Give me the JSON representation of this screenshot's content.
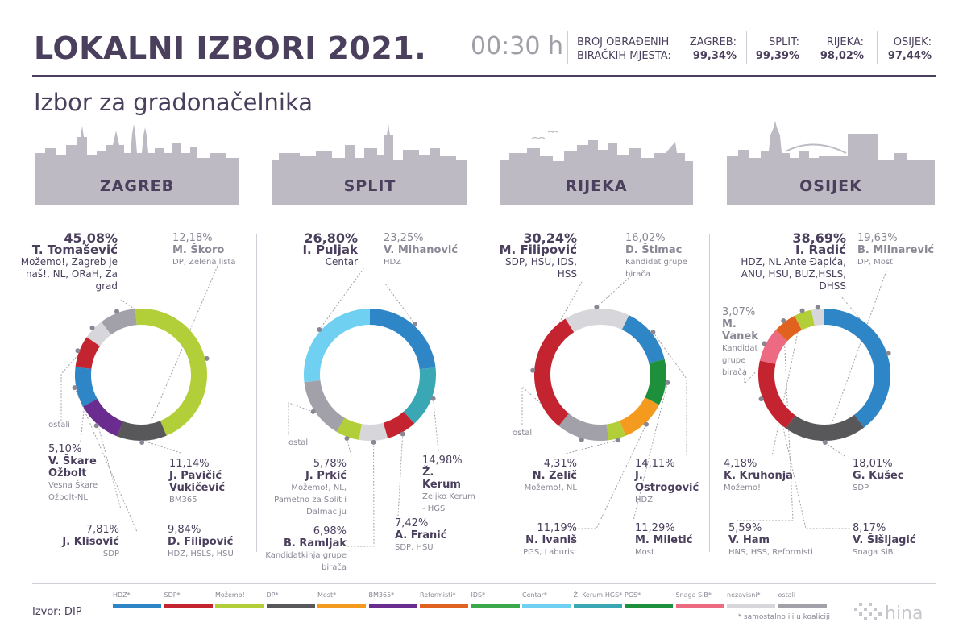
{
  "header": {
    "title": "LOKALNI IZBORI 2021.",
    "time": "00:30 h",
    "count_label_1": "BROJ OBRAĐENIH",
    "count_label_2": "BIRAČKIH MJESTA:",
    "counts": [
      {
        "city": "ZAGREB:",
        "value": "99,34%"
      },
      {
        "city": "SPLIT:",
        "value": "99,39%"
      },
      {
        "city": "RIJEKA:",
        "value": "98,02%"
      },
      {
        "city": "OSIJEK:",
        "value": "97,44%"
      }
    ]
  },
  "subtitle": "Izbor za gradonačelnika",
  "cities": [
    {
      "name": "ZAGREB"
    },
    {
      "name": "SPLIT"
    },
    {
      "name": "RIJEKA"
    },
    {
      "name": "OSIJEK"
    }
  ],
  "colors": {
    "HDZ": "#2f86c6",
    "SDP": "#c42430",
    "Mozemo": "#b2cf3a",
    "DP": "#58585a",
    "Most": "#f39a1f",
    "BM365": "#6a2d8f",
    "Reformisti": "#e0621e",
    "IDS": "#3aa84b",
    "Centar": "#6fd0f2",
    "Kerum": "#3aa7b5",
    "PGS": "#1e8f3a",
    "SnagaSiB": "#ec6a82",
    "nezavisni": "#d7d6da",
    "ostali": "#a2a0a8"
  },
  "chart_data": [
    {
      "type": "pie",
      "title": "ZAGREB",
      "slices": [
        {
          "name": "T. Tomašević",
          "value": 45.08,
          "color": "#b2cf3a"
        },
        {
          "name": "M. Škoro",
          "value": 12.18,
          "color": "#58585a"
        },
        {
          "name": "J. Pavičić Vukičević",
          "value": 11.14,
          "color": "#6a2d8f"
        },
        {
          "name": "D. Filipović",
          "value": 9.84,
          "color": "#2f86c6"
        },
        {
          "name": "J. Klisović",
          "value": 7.81,
          "color": "#c42430"
        },
        {
          "name": "V. Škare Ožbolt",
          "value": 5.1,
          "color": "#d7d6da"
        },
        {
          "name": "ostali",
          "value": 8.85,
          "color": "#a2a0a8"
        }
      ],
      "labels": [
        {
          "pct": "45,08%",
          "name": "T. Tomašević",
          "party": "Možemo!, Zagreb je naš!, NL, ORaH, Za grad"
        },
        {
          "pct": "12,18%",
          "name": "M. Škoro",
          "party": "DP, Zelena lista"
        },
        {
          "pct": "11,14%",
          "name": "J. Pavičić Vukičević",
          "party": "BM365"
        },
        {
          "pct": "9,84%",
          "name": "D. Filipović",
          "party": "HDZ, HSLS, HSU"
        },
        {
          "pct": "7,81%",
          "name": "J. Klisović",
          "party": "SDP"
        },
        {
          "pct": "5,10%",
          "name": "V. Škare Ožbolt",
          "party": "Vesna Škare Ožbolt-NL"
        },
        {
          "pct": "",
          "name": "ostali",
          "party": ""
        }
      ]
    },
    {
      "type": "pie",
      "title": "SPLIT",
      "slices": [
        {
          "name": "V. Mihanović",
          "value": 23.25,
          "color": "#2f86c6"
        },
        {
          "name": "Ž. Kerum",
          "value": 14.98,
          "color": "#3aa7b5"
        },
        {
          "name": "A. Franić",
          "value": 7.42,
          "color": "#c42430"
        },
        {
          "name": "B. Ramljak",
          "value": 6.98,
          "color": "#d7d6da"
        },
        {
          "name": "J. Prkić",
          "value": 5.78,
          "color": "#b2cf3a"
        },
        {
          "name": "ostali",
          "value": 14.79,
          "color": "#a2a0a8"
        },
        {
          "name": "I. Puljak",
          "value": 26.8,
          "color": "#6fd0f2"
        }
      ],
      "labels": [
        {
          "pct": "26,80%",
          "name": "I. Puljak",
          "party": "Centar"
        },
        {
          "pct": "23,25%",
          "name": "V. Mihanović",
          "party": "HDZ"
        },
        {
          "pct": "14,98%",
          "name": "Ž. Kerum",
          "party": "Željko Kerum - HGS"
        },
        {
          "pct": "7,42%",
          "name": "A. Franić",
          "party": "SDP, HSU"
        },
        {
          "pct": "6,98%",
          "name": "B. Ramljak",
          "party": "Kandidatkinja grupe birača"
        },
        {
          "pct": "5,78%",
          "name": "J. Prkić",
          "party": "Možemo!, NL, Pametno za Split i Dalmaciju"
        },
        {
          "pct": "",
          "name": "ostali",
          "party": ""
        }
      ]
    },
    {
      "type": "pie",
      "title": "RIJEKA",
      "slices": [
        {
          "name": "D. Štimac",
          "value": 16.02,
          "color": "#d7d6da"
        },
        {
          "name": "J. Ostrogović",
          "value": 14.11,
          "color": "#2f86c6"
        },
        {
          "name": "M. Miletić",
          "value": 11.29,
          "color": "#1e8f3a"
        },
        {
          "name": "N. Ivaniš",
          "value": 11.19,
          "color": "#f39a1f"
        },
        {
          "name": "N. Zelič",
          "value": 4.31,
          "color": "#b2cf3a"
        },
        {
          "name": "ostali",
          "value": 12.84,
          "color": "#a2a0a8"
        },
        {
          "name": "M. Filipović",
          "value": 30.24,
          "color": "#c42430"
        }
      ],
      "labels": [
        {
          "pct": "30,24%",
          "name": "M. Filipović",
          "party": "SDP, HSU, IDS, HSS"
        },
        {
          "pct": "16,02%",
          "name": "D. Štimac",
          "party": "Kandidat grupe birača"
        },
        {
          "pct": "14,11%",
          "name": "J. Ostrogović",
          "party": "HDZ"
        },
        {
          "pct": "11,29%",
          "name": "M. Miletić",
          "party": "Most"
        },
        {
          "pct": "11,19%",
          "name": "N. Ivaniš",
          "party": "PGS, Laburist"
        },
        {
          "pct": "4,31%",
          "name": "N. Zelič",
          "party": "Možemo!, NL"
        },
        {
          "pct": "",
          "name": "ostali",
          "party": ""
        }
      ]
    },
    {
      "type": "pie",
      "title": "OSIJEK",
      "slices": [
        {
          "name": "I. Radić",
          "value": 38.69,
          "color": "#2f86c6"
        },
        {
          "name": "B. Mlinarević",
          "value": 19.63,
          "color": "#58585a"
        },
        {
          "name": "G. Kušec",
          "value": 18.01,
          "color": "#c42430"
        },
        {
          "name": "V. Šišljagić",
          "value": 8.17,
          "color": "#ec6a82"
        },
        {
          "name": "V. Ham",
          "value": 5.59,
          "color": "#e0621e"
        },
        {
          "name": "K. Kruhonja",
          "value": 4.18,
          "color": "#b2cf3a"
        },
        {
          "name": "M. Vanek",
          "value": 3.07,
          "color": "#d7d6da"
        }
      ],
      "labels": [
        {
          "pct": "38,69%",
          "name": "I. Radić",
          "party": "HDZ, NL Ante Đapića, ANU, HSU, BUZ,HSLS, DHSS"
        },
        {
          "pct": "19,63%",
          "name": "B. Mlinarević",
          "party": "DP, Most"
        },
        {
          "pct": "18,01%",
          "name": "G. Kušec",
          "party": "SDP"
        },
        {
          "pct": "8,17%",
          "name": "V. Šišljagić",
          "party": "Snaga SiB"
        },
        {
          "pct": "5,59%",
          "name": "V. Ham",
          "party": "HNS, HSS, Reformisti"
        },
        {
          "pct": "4,18%",
          "name": "K. Kruhonja",
          "party": "Možemo!"
        },
        {
          "pct": "3,07%",
          "name": "M. Vanek",
          "party": "Kandidat grupe birača"
        }
      ]
    }
  ],
  "legend": [
    {
      "label": "HDZ*",
      "color": "#2f86c6"
    },
    {
      "label": "SDP*",
      "color": "#c42430"
    },
    {
      "label": "Možemo!",
      "color": "#b2cf3a"
    },
    {
      "label": "DP*",
      "color": "#58585a"
    },
    {
      "label": "Most*",
      "color": "#f39a1f"
    },
    {
      "label": "BM365*",
      "color": "#6a2d8f"
    },
    {
      "label": "Reformisti*",
      "color": "#e0621e"
    },
    {
      "label": "IDS*",
      "color": "#3aa84b"
    },
    {
      "label": "Centar*",
      "color": "#6fd0f2"
    },
    {
      "label": "Ž. Kerum-HGS*",
      "color": "#3aa7b5"
    },
    {
      "label": "PGS*",
      "color": "#1e8f3a"
    },
    {
      "label": "Snaga SiB*",
      "color": "#ec6a82"
    },
    {
      "label": "nezavisni*",
      "color": "#d7d6da"
    },
    {
      "label": "ostali",
      "color": "#a2a0a8"
    }
  ],
  "footer": {
    "source": "Izvor: DIP",
    "note": "* samostalno ili u koaliciji",
    "logo": "hina"
  }
}
